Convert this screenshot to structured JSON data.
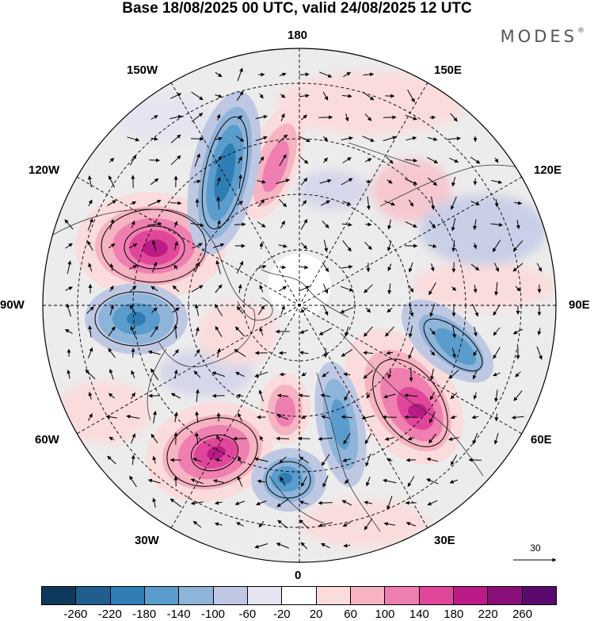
{
  "title": "Base 18/08/2025 00 UTC, valid 24/08/2025 12 UTC",
  "brand": "MODES",
  "brand_mark": "®",
  "longitude_labels": {
    "lon_180": "180",
    "lon_150w": "150W",
    "lon_150e": "150E",
    "lon_120w": "120W",
    "lon_120e": "120E",
    "lon_90w": "90W",
    "lon_90e": "90E",
    "lon_60w": "60W",
    "lon_60e": "60E",
    "lon_30w": "30W",
    "lon_30e": "30E",
    "lon_0": "0"
  },
  "reference_vector": {
    "value": "30"
  },
  "colorbar": {
    "ticks": [
      "-260",
      "-220",
      "-180",
      "-140",
      "-100",
      "-60",
      "-20",
      "20",
      "60",
      "100",
      "140",
      "180",
      "220",
      "260"
    ],
    "colors": [
      "#0d3a5c",
      "#1f5e8e",
      "#2e7db5",
      "#5a9ccb",
      "#8fb4da",
      "#bfc8e3",
      "#e6e4f1",
      "#ffffff",
      "#fbdcdc",
      "#f6b3c2",
      "#ef7fb0",
      "#e0479a",
      "#bb1b86",
      "#8a0f78",
      "#5a0a6e"
    ]
  },
  "anomaly_centers": [
    {
      "type": "positive",
      "intensity": 230
    },
    {
      "type": "positive",
      "intensity": 230
    },
    {
      "type": "positive",
      "intensity": 200
    },
    {
      "type": "positive",
      "intensity": 150
    },
    {
      "type": "positive",
      "intensity": 120
    },
    {
      "type": "negative",
      "intensity": -210
    },
    {
      "type": "negative",
      "intensity": -180
    },
    {
      "type": "negative",
      "intensity": -180
    },
    {
      "type": "negative",
      "intensity": -160
    },
    {
      "type": "negative",
      "intensity": -140
    }
  ]
}
